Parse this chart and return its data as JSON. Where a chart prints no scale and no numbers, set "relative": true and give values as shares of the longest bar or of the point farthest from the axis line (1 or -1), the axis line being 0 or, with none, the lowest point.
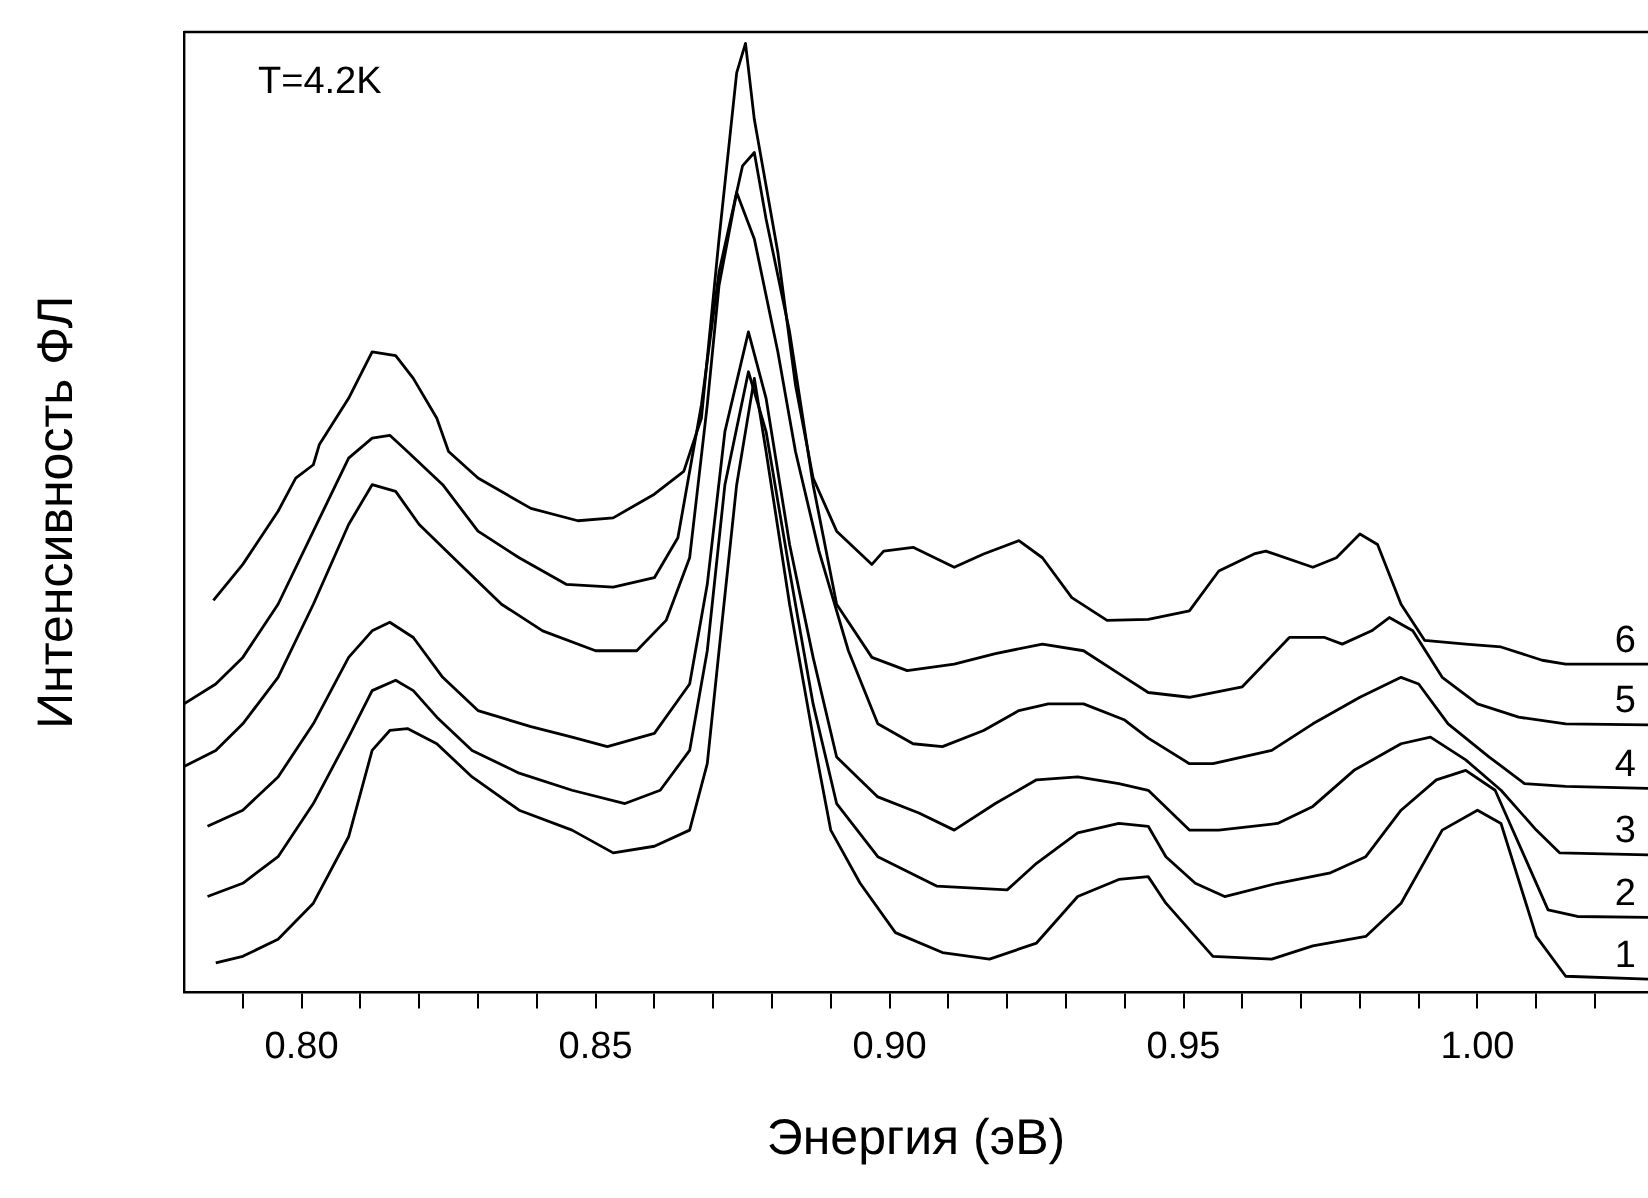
{
  "chart_data": {
    "type": "line",
    "xlabel": "Энергия (эВ)",
    "ylabel": "Интенсивность ФЛ",
    "annotations": [
      "T=4.2K"
    ],
    "relative": true,
    "grid": false,
    "legend": false,
    "marker": "none",
    "line_style": "solid",
    "xlim": [
      0.78,
      1.029
    ],
    "xticks": [
      {
        "value": 0.79,
        "label": null
      },
      {
        "value": 0.8,
        "label": "0.80"
      },
      {
        "value": 0.81,
        "label": null
      },
      {
        "value": 0.82,
        "label": null
      },
      {
        "value": 0.83,
        "label": null
      },
      {
        "value": 0.84,
        "label": null
      },
      {
        "value": 0.85,
        "label": "0.85"
      },
      {
        "value": 0.86,
        "label": null
      },
      {
        "value": 0.87,
        "label": null
      },
      {
        "value": 0.88,
        "label": null
      },
      {
        "value": 0.89,
        "label": null
      },
      {
        "value": 0.9,
        "label": "0.90"
      },
      {
        "value": 0.91,
        "label": null
      },
      {
        "value": 0.92,
        "label": null
      },
      {
        "value": 0.93,
        "label": null
      },
      {
        "value": 0.94,
        "label": null
      },
      {
        "value": 0.95,
        "label": "0.95"
      },
      {
        "value": 0.96,
        "label": null
      },
      {
        "value": 0.97,
        "label": null
      },
      {
        "value": 0.98,
        "label": null
      },
      {
        "value": 0.99,
        "label": null
      },
      {
        "value": 1.0,
        "label": "1.00"
      },
      {
        "value": 1.01,
        "label": null
      },
      {
        "value": 1.02,
        "label": null
      }
    ],
    "series": [
      {
        "name": "1",
        "color": "#000000",
        "x": [
          0.7854,
          0.79,
          0.796,
          0.802,
          0.808,
          0.812,
          0.815,
          0.818,
          0.823,
          0.829,
          0.837,
          0.846,
          0.853,
          0.86,
          0.866,
          0.869,
          0.871,
          0.874,
          0.877,
          0.879,
          0.883,
          0.887,
          0.89,
          0.895,
          0.901,
          0.909,
          0.917,
          0.925,
          0.932,
          0.939,
          0.944,
          0.947,
          0.955,
          0.965,
          0.972,
          0.981,
          0.987,
          0.994,
          1.0,
          1.004,
          1.01,
          1.015,
          1.029
        ],
        "values": [
          0.031,
          0.038,
          0.056,
          0.094,
          0.164,
          0.255,
          0.276,
          0.278,
          0.262,
          0.227,
          0.192,
          0.171,
          0.147,
          0.154,
          0.171,
          0.241,
          0.36,
          0.535,
          0.647,
          0.57,
          0.409,
          0.269,
          0.171,
          0.115,
          0.063,
          0.042,
          0.035,
          0.052,
          0.101,
          0.119,
          0.122,
          0.094,
          0.038,
          0.035,
          0.049,
          0.059,
          0.094,
          0.171,
          0.192,
          0.178,
          0.059,
          0.017,
          0.014
        ]
      },
      {
        "name": "2",
        "color": "#000000",
        "x": [
          0.784,
          0.79,
          0.796,
          0.802,
          0.808,
          0.812,
          0.816,
          0.819,
          0.823,
          0.829,
          0.837,
          0.846,
          0.855,
          0.861,
          0.866,
          0.869,
          0.872,
          0.876,
          0.879,
          0.883,
          0.887,
          0.891,
          0.898,
          0.908,
          0.92,
          0.925,
          0.932,
          0.939,
          0.944,
          0.947,
          0.952,
          0.957,
          0.966,
          0.975,
          0.981,
          0.987,
          0.993,
          0.998,
          1.003,
          1.008,
          1.012,
          1.017,
          1.029
        ],
        "values": [
          0.101,
          0.115,
          0.143,
          0.199,
          0.269,
          0.318,
          0.329,
          0.318,
          0.29,
          0.255,
          0.231,
          0.213,
          0.199,
          0.213,
          0.255,
          0.36,
          0.535,
          0.654,
          0.591,
          0.444,
          0.304,
          0.199,
          0.143,
          0.112,
          0.108,
          0.136,
          0.168,
          0.178,
          0.175,
          0.143,
          0.115,
          0.101,
          0.115,
          0.126,
          0.143,
          0.192,
          0.224,
          0.234,
          0.213,
          0.143,
          0.087,
          0.08,
          0.079
        ]
      },
      {
        "name": "3",
        "color": "#000000",
        "x": [
          0.784,
          0.79,
          0.796,
          0.802,
          0.808,
          0.812,
          0.815,
          0.819,
          0.824,
          0.83,
          0.839,
          0.846,
          0.852,
          0.86,
          0.866,
          0.869,
          0.872,
          0.876,
          0.879,
          0.883,
          0.887,
          0.891,
          0.898,
          0.905,
          0.911,
          0.918,
          0.925,
          0.932,
          0.939,
          0.944,
          0.951,
          0.956,
          0.966,
          0.972,
          0.979,
          0.987,
          0.992,
          0.998,
          1.004,
          1.01,
          1.014,
          1.029
        ],
        "values": [
          0.175,
          0.192,
          0.227,
          0.283,
          0.353,
          0.381,
          0.39,
          0.374,
          0.332,
          0.297,
          0.28,
          0.269,
          0.259,
          0.273,
          0.325,
          0.43,
          0.591,
          0.696,
          0.626,
          0.472,
          0.353,
          0.248,
          0.206,
          0.189,
          0.171,
          0.199,
          0.224,
          0.227,
          0.22,
          0.213,
          0.171,
          0.171,
          0.178,
          0.196,
          0.234,
          0.262,
          0.269,
          0.245,
          0.213,
          0.171,
          0.147,
          0.145
        ]
      },
      {
        "name": "4",
        "color": "#000000",
        "x": [
          0.78,
          0.7854,
          0.79,
          0.796,
          0.802,
          0.808,
          0.812,
          0.816,
          0.82,
          0.827,
          0.834,
          0.841,
          0.85,
          0.857,
          0.862,
          0.866,
          0.869,
          0.871,
          0.874,
          0.877,
          0.881,
          0.884,
          0.888,
          0.893,
          0.898,
          0.904,
          0.909,
          0.916,
          0.922,
          0.927,
          0.933,
          0.94,
          0.944,
          0.951,
          0.955,
          0.965,
          0.972,
          0.98,
          0.987,
          0.99,
          0.995,
          1.002,
          1.008,
          1.015,
          1.029
        ],
        "values": [
          0.238,
          0.255,
          0.283,
          0.332,
          0.409,
          0.493,
          0.535,
          0.528,
          0.493,
          0.451,
          0.409,
          0.381,
          0.36,
          0.36,
          0.392,
          0.458,
          0.619,
          0.745,
          0.843,
          0.794,
          0.675,
          0.57,
          0.465,
          0.36,
          0.283,
          0.262,
          0.259,
          0.276,
          0.297,
          0.304,
          0.304,
          0.287,
          0.268,
          0.241,
          0.241,
          0.255,
          0.283,
          0.311,
          0.332,
          0.325,
          0.283,
          0.248,
          0.22,
          0.217,
          0.215
        ]
      },
      {
        "name": "5",
        "color": "#000000",
        "x": [
          0.78,
          0.7854,
          0.79,
          0.796,
          0.802,
          0.808,
          0.812,
          0.815,
          0.818,
          0.824,
          0.83,
          0.837,
          0.845,
          0.853,
          0.86,
          0.864,
          0.868,
          0.871,
          0.875,
          0.877,
          0.879,
          0.883,
          0.887,
          0.891,
          0.897,
          0.903,
          0.911,
          0.918,
          0.926,
          0.933,
          0.94,
          0.944,
          0.951,
          0.96,
          0.968,
          0.974,
          0.977,
          0.982,
          0.985,
          0.989,
          0.994,
          1.0,
          1.007,
          1.015,
          1.029
        ],
        "values": [
          0.304,
          0.325,
          0.353,
          0.409,
          0.486,
          0.563,
          0.584,
          0.587,
          0.57,
          0.535,
          0.486,
          0.458,
          0.43,
          0.427,
          0.437,
          0.479,
          0.619,
          0.759,
          0.871,
          0.885,
          0.815,
          0.696,
          0.535,
          0.409,
          0.353,
          0.339,
          0.346,
          0.357,
          0.367,
          0.36,
          0.332,
          0.316,
          0.311,
          0.322,
          0.374,
          0.374,
          0.367,
          0.381,
          0.395,
          0.381,
          0.332,
          0.304,
          0.29,
          0.283,
          0.282
        ]
      },
      {
        "name": "6",
        "color": "#000000",
        "x": [
          0.785,
          0.79,
          0.796,
          0.799,
          0.802,
          0.803,
          0.808,
          0.812,
          0.816,
          0.819,
          0.823,
          0.825,
          0.83,
          0.839,
          0.847,
          0.853,
          0.86,
          0.865,
          0.868,
          0.871,
          0.874,
          0.8755,
          0.877,
          0.881,
          0.884,
          0.887,
          0.891,
          0.897,
          0.899,
          0.904,
          0.911,
          0.916,
          0.922,
          0.926,
          0.931,
          0.937,
          0.944,
          0.951,
          0.956,
          0.962,
          0.964,
          0.972,
          0.976,
          0.98,
          0.983,
          0.987,
          0.991,
          0.998,
          1.004,
          1.011,
          1.015,
          1.029
        ],
        "values": [
          0.413,
          0.451,
          0.507,
          0.542,
          0.556,
          0.577,
          0.626,
          0.675,
          0.671,
          0.647,
          0.605,
          0.57,
          0.542,
          0.51,
          0.497,
          0.5,
          0.525,
          0.549,
          0.605,
          0.794,
          0.969,
          1.0,
          0.92,
          0.78,
          0.64,
          0.542,
          0.486,
          0.451,
          0.465,
          0.469,
          0.448,
          0.462,
          0.476,
          0.458,
          0.416,
          0.392,
          0.393,
          0.402,
          0.444,
          0.462,
          0.465,
          0.448,
          0.458,
          0.483,
          0.472,
          0.409,
          0.371,
          0.367,
          0.364,
          0.35,
          0.346,
          0.346
        ]
      }
    ]
  }
}
